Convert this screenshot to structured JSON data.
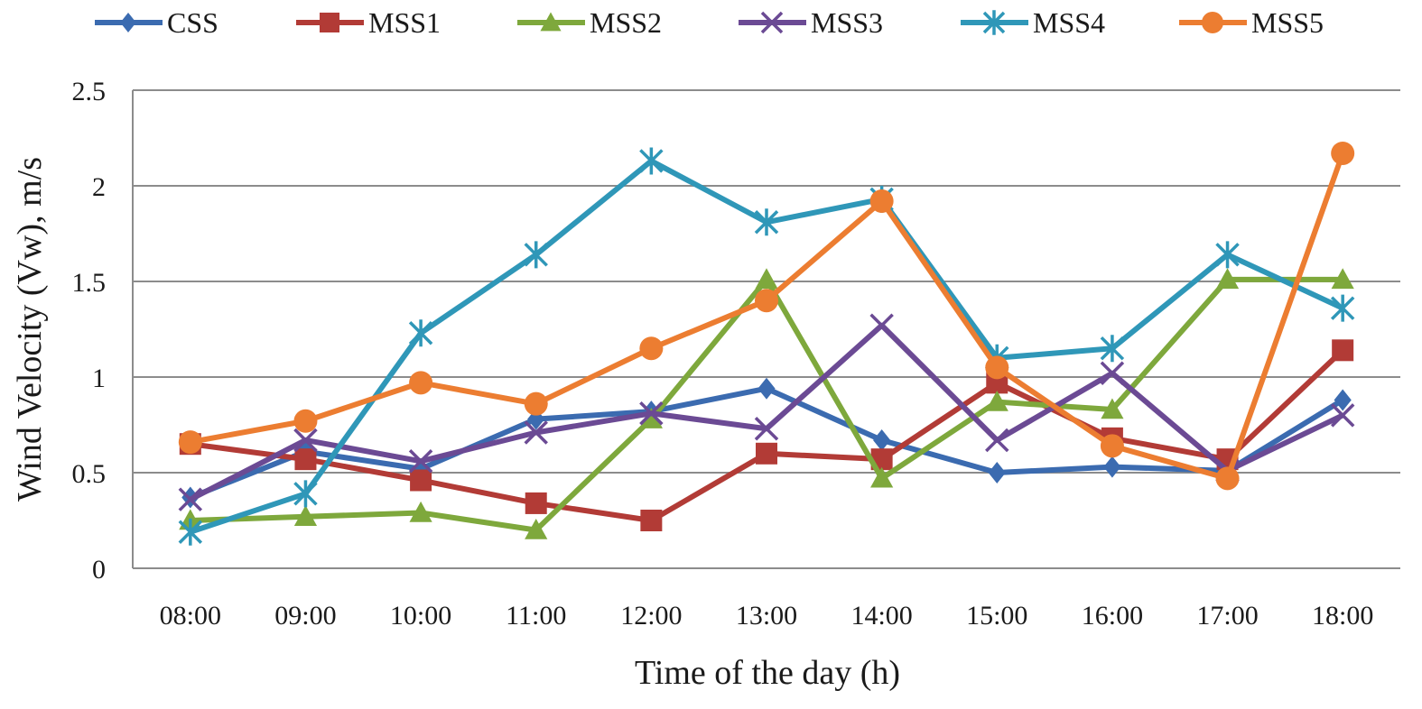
{
  "chart_data": {
    "type": "line",
    "title": "",
    "xlabel": "Time of the day (h)",
    "ylabel": "Wind Velocity (Vw),  m/s",
    "ylim": [
      0,
      2.5
    ],
    "yticks": [
      "0",
      "0.5",
      "1",
      "1.5",
      "2",
      "2.5"
    ],
    "grid": true,
    "legend_position": "top",
    "categories": [
      "08:00",
      "09:00",
      "10:00",
      "11:00",
      "12:00",
      "13:00",
      "14:00",
      "15:00",
      "16:00",
      "17:00",
      "18:00"
    ],
    "series": [
      {
        "name": "CSS",
        "color": "#3b6bb0",
        "marker": "diamond",
        "values": [
          0.37,
          0.61,
          0.52,
          0.78,
          0.82,
          0.94,
          0.67,
          0.5,
          0.53,
          0.51,
          0.88
        ]
      },
      {
        "name": "MSS1",
        "color": "#b23b36",
        "marker": "square",
        "values": [
          0.65,
          0.57,
          0.46,
          0.34,
          0.25,
          0.6,
          0.57,
          0.97,
          0.68,
          0.57,
          1.14
        ]
      },
      {
        "name": "MSS2",
        "color": "#7ea83c",
        "marker": "triangle",
        "values": [
          0.25,
          0.27,
          0.29,
          0.2,
          0.78,
          1.51,
          0.47,
          0.87,
          0.83,
          1.51,
          1.51
        ]
      },
      {
        "name": "MSS3",
        "color": "#6b4a94",
        "marker": "x",
        "values": [
          0.36,
          0.67,
          0.56,
          0.71,
          0.81,
          0.73,
          1.27,
          0.67,
          1.02,
          0.51,
          0.8
        ]
      },
      {
        "name": "MSS4",
        "color": "#2f97b8",
        "marker": "star",
        "values": [
          0.19,
          0.39,
          1.23,
          1.64,
          2.13,
          1.81,
          1.93,
          1.1,
          1.15,
          1.64,
          1.36
        ]
      },
      {
        "name": "MSS5",
        "color": "#ec7d31",
        "marker": "circle",
        "values": [
          0.66,
          0.77,
          0.97,
          0.86,
          1.15,
          1.4,
          1.92,
          1.05,
          0.64,
          0.47,
          2.17
        ]
      }
    ]
  }
}
